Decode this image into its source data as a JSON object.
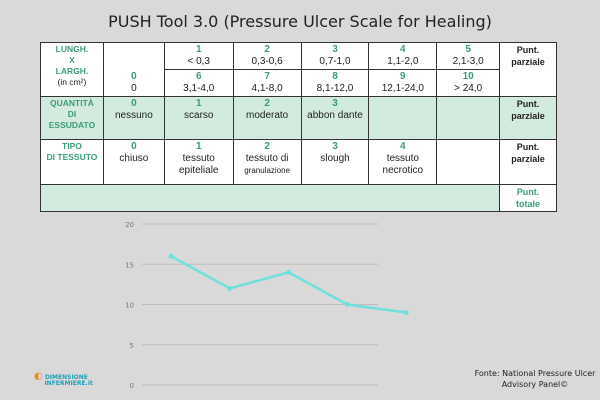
{
  "title": "PUSH Tool 3.0 (Pressure Ulcer Scale for Healing)",
  "table": {
    "row1": {
      "label": [
        "LUNGH.",
        "X",
        "LARGH.",
        "(in cm²)"
      ],
      "zero": {
        "n": "0",
        "t": "0"
      },
      "top": [
        {
          "n": "1",
          "t": "< 0,3"
        },
        {
          "n": "2",
          "t": "0,3-0,6"
        },
        {
          "n": "3",
          "t": "0,7-1,0"
        },
        {
          "n": "4",
          "t": "1,1-2,0"
        },
        {
          "n": "5",
          "t": "2,1-3,0"
        }
      ],
      "bottom": [
        {
          "n": "6",
          "t": "3,1-4,0"
        },
        {
          "n": "7",
          "t": "4,1-8,0"
        },
        {
          "n": "8",
          "t": "8,1-12,0"
        },
        {
          "n": "9",
          "t": "12,1-24,0"
        },
        {
          "n": "10",
          "t": "> 24,0"
        }
      ],
      "score": [
        "Punt.",
        "parziale"
      ]
    },
    "row2": {
      "label": [
        "QUANTITÀ",
        "DI",
        "ESSUDATO"
      ],
      "cells": [
        {
          "n": "0",
          "t": "nessuno"
        },
        {
          "n": "1",
          "t": "scarso"
        },
        {
          "n": "2",
          "t": "moderato"
        },
        {
          "n": "3",
          "t": "abbon dante"
        }
      ],
      "score": [
        "Punt.",
        "parziale"
      ]
    },
    "row3": {
      "label": [
        "TIPO",
        "DI TESSUTO"
      ],
      "cells": [
        {
          "n": "0",
          "t": "chiuso"
        },
        {
          "n": "1",
          "t": "tessuto epiteliale"
        },
        {
          "n": "2",
          "t": "tessuto di",
          "t2": "granulazione"
        },
        {
          "n": "3",
          "t": "slough"
        },
        {
          "n": "4",
          "t": "tessuto necrotico"
        }
      ],
      "score": [
        "Punt.",
        "parziale"
      ]
    },
    "total": [
      "Punt.",
      "totale"
    ]
  },
  "chart_data": {
    "type": "line",
    "x": [
      1,
      2,
      3,
      4,
      5
    ],
    "values": [
      16,
      12,
      14,
      10,
      9
    ],
    "ylim": [
      0,
      20
    ],
    "yticks": [
      0,
      5,
      10,
      15,
      20
    ],
    "grid": true,
    "color": "#6fe0dc"
  },
  "logo": [
    "DIMENSIONE",
    "INFERMIERE.it"
  ],
  "source": [
    "Fonte:  National Pressure Ulcer",
    "Advisory Panel©"
  ]
}
